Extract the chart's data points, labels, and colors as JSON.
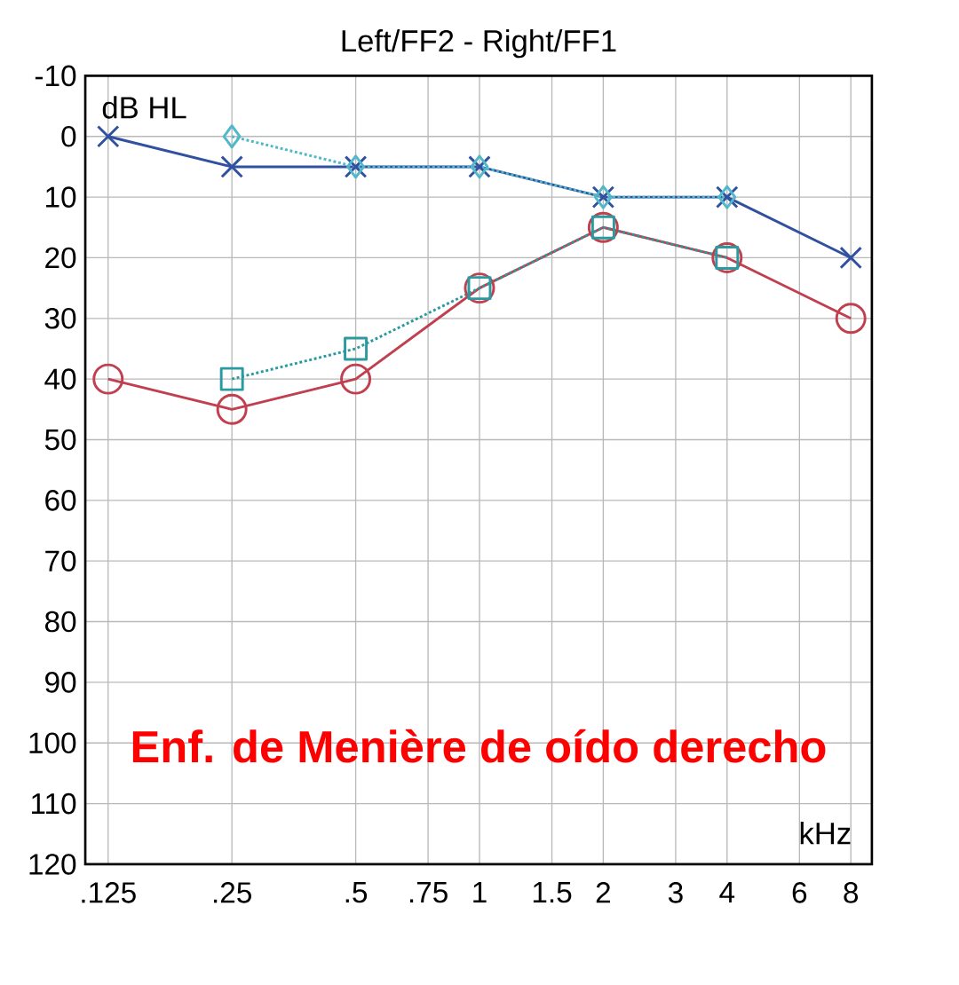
{
  "chart_data": {
    "type": "line",
    "title": "Left/FF2 - Right/FF1",
    "xlabel": "kHz",
    "ylabel": "dB HL",
    "log": "x",
    "grid": true,
    "xlim": [
      0.11,
      9
    ],
    "ylim": [
      120,
      -10
    ],
    "xticks": [
      {
        "value": 0.125,
        "label": ".125"
      },
      {
        "value": 0.25,
        "label": ".25"
      },
      {
        "value": 0.5,
        "label": ".5"
      },
      {
        "value": 0.75,
        "label": ".75"
      },
      1,
      1.5,
      2,
      3,
      4,
      6,
      8
    ],
    "yticks": [
      -10,
      0,
      10,
      20,
      30,
      40,
      50,
      60,
      70,
      80,
      90,
      100,
      110,
      120
    ],
    "series": [
      {
        "x": [
          0.125,
          0.25,
          0.5,
          1,
          2,
          4,
          8
        ],
        "values": [
          0,
          5,
          5,
          5,
          10,
          10,
          20
        ],
        "color": "#3050a0",
        "marker": "cross",
        "line_style": "solid"
      },
      {
        "x": [
          0.125,
          0.25,
          0.5,
          1,
          2,
          4,
          8
        ],
        "values": [
          40,
          45,
          40,
          25,
          15,
          20,
          30
        ],
        "color": "#c04050",
        "marker": "circle",
        "line_style": "solid"
      },
      {
        "x": [
          0.25,
          0.5,
          1,
          2,
          4
        ],
        "values": [
          0,
          5,
          5,
          10,
          10
        ],
        "color": "#50b8c8",
        "marker": "diamond",
        "line_style": "dotted"
      },
      {
        "x": [
          0.25,
          0.5,
          1,
          2,
          4
        ],
        "values": [
          40,
          35,
          25,
          15,
          20
        ],
        "color": "#2a9aa0",
        "marker": "square",
        "line_style": "dotted"
      }
    ],
    "annotations": [
      "Enf. de Menière de oído derecho"
    ]
  }
}
